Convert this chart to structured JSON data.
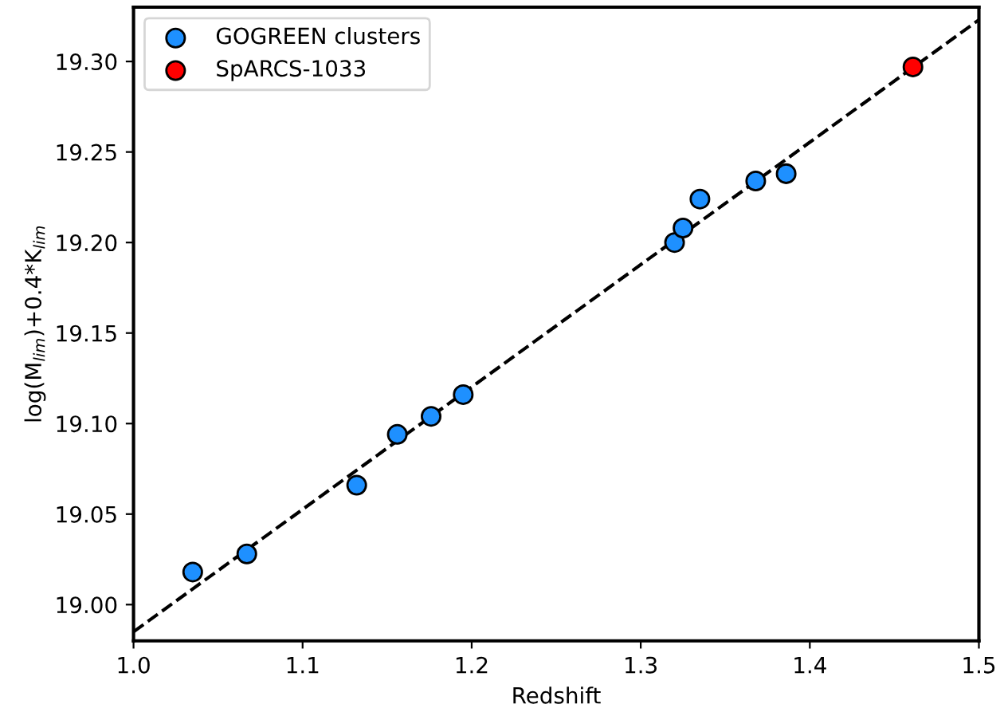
{
  "chart_data": {
    "type": "scatter",
    "xlabel": "Redshift",
    "ylabel": "log(M$_{lim}$)+0.4*K$_{lim}$",
    "xlim": [
      1.0,
      1.5
    ],
    "ylim": [
      18.98,
      19.33
    ],
    "xticks": [
      {
        "value": 1.0,
        "label": "1.0"
      },
      {
        "value": 1.1,
        "label": "1.1"
      },
      {
        "value": 1.2,
        "label": "1.2"
      },
      {
        "value": 1.3,
        "label": "1.3"
      },
      {
        "value": 1.4,
        "label": "1.4"
      },
      {
        "value": 1.5,
        "label": "1.5"
      }
    ],
    "yticks": [
      {
        "value": 19.0,
        "label": "19.00"
      },
      {
        "value": 19.05,
        "label": "19.05"
      },
      {
        "value": 19.1,
        "label": "19.10"
      },
      {
        "value": 19.15,
        "label": "19.15"
      },
      {
        "value": 19.2,
        "label": "19.20"
      },
      {
        "value": 19.25,
        "label": "19.25"
      },
      {
        "value": 19.3,
        "label": "19.30"
      }
    ],
    "grid": false,
    "legend": "top left",
    "marker": "circle",
    "series": [
      {
        "type": "line",
        "color": "#000000",
        "line_style": "dashed",
        "marker": "none",
        "x": [
          1.0,
          1.5
        ],
        "values": [
          18.985,
          19.323
        ]
      },
      {
        "name": "GOGREEN clusters",
        "color": "#1e90ff",
        "x": [
          1.035,
          1.067,
          1.132,
          1.156,
          1.176,
          1.195,
          1.32,
          1.325,
          1.335,
          1.368,
          1.386
        ],
        "values": [
          19.018,
          19.028,
          19.066,
          19.094,
          19.104,
          19.116,
          19.2,
          19.208,
          19.224,
          19.234,
          19.238
        ]
      },
      {
        "name": "SpARCS-1033",
        "color": "#ff0000",
        "x": [
          1.461
        ],
        "values": [
          19.297
        ]
      }
    ]
  }
}
